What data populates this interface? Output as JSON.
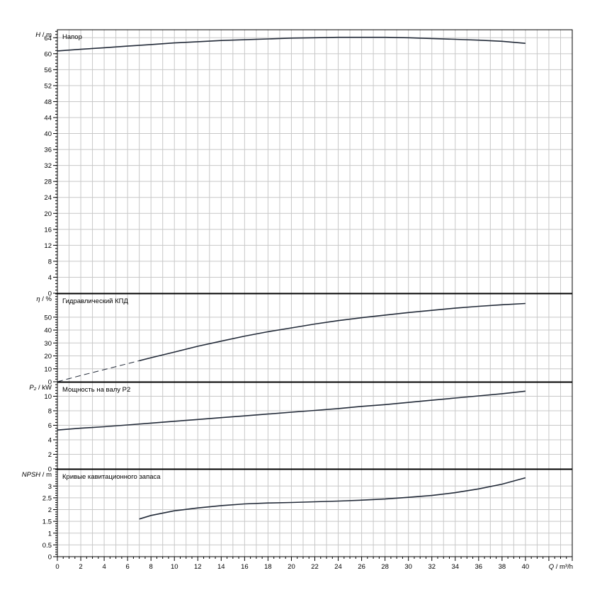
{
  "chart_data": [
    {
      "type": "line",
      "panel": "head",
      "title": "Напор",
      "ylabel_symbol": "H",
      "ylabel_unit": " / m",
      "ylim": [
        0,
        66
      ],
      "yticks": [
        0,
        4,
        8,
        12,
        16,
        20,
        24,
        28,
        32,
        36,
        40,
        44,
        48,
        52,
        56,
        60,
        64
      ],
      "x": [
        0,
        2,
        4,
        6,
        8,
        10,
        12,
        14,
        16,
        18,
        20,
        22,
        24,
        26,
        28,
        30,
        32,
        34,
        36,
        38,
        40
      ],
      "series": [
        {
          "values": [
            60.7,
            61.1,
            61.5,
            61.9,
            62.3,
            62.7,
            63.0,
            63.3,
            63.5,
            63.7,
            63.9,
            64.0,
            64.1,
            64.1,
            64.1,
            64.0,
            63.8,
            63.6,
            63.4,
            63.1,
            62.6
          ]
        }
      ]
    },
    {
      "type": "line",
      "panel": "efficiency",
      "title": "Гидравлический КПД",
      "ylabel_symbol": "η",
      "ylabel_unit": " / %",
      "ylim": [
        0,
        68
      ],
      "yticks": [
        0,
        10,
        20,
        30,
        40,
        50
      ],
      "series": [
        {
          "style": "dashed",
          "x": [
            0,
            2,
            4,
            6,
            7
          ],
          "values": [
            0,
            4.8,
            9.4,
            14,
            16.3
          ]
        },
        {
          "style": "solid",
          "x": [
            7,
            8,
            10,
            12,
            14,
            16,
            18,
            20,
            22,
            24,
            26,
            28,
            30,
            32,
            34,
            36,
            38,
            40
          ],
          "values": [
            16.3,
            18.6,
            23.0,
            27.5,
            31.4,
            35.3,
            38.7,
            41.7,
            44.7,
            47.3,
            49.6,
            51.6,
            53.6,
            55.3,
            57.0,
            58.4,
            59.6,
            60.6
          ]
        }
      ]
    },
    {
      "type": "line",
      "panel": "power",
      "title": "Мощность на валу P2",
      "ylabel_symbol": "P₂",
      "ylabel_unit": " / kW",
      "ylim": [
        0,
        11.9
      ],
      "yticks": [
        0,
        2,
        4,
        6,
        8,
        10
      ],
      "x": [
        0,
        2,
        4,
        6,
        8,
        10,
        12,
        14,
        16,
        18,
        20,
        22,
        24,
        26,
        28,
        30,
        32,
        34,
        36,
        38,
        40
      ],
      "series": [
        {
          "values": [
            5.35,
            5.6,
            5.8,
            6.05,
            6.3,
            6.55,
            6.8,
            7.05,
            7.3,
            7.55,
            7.8,
            8.05,
            8.3,
            8.6,
            8.85,
            9.15,
            9.45,
            9.75,
            10.05,
            10.35,
            10.7
          ]
        }
      ]
    },
    {
      "type": "line",
      "panel": "npsh",
      "title": "Кривые кавитационного запаса",
      "ylabel_symbol": "NPSH",
      "ylabel_unit": " / m",
      "ylim": [
        0,
        3.7
      ],
      "yticks": [
        0,
        0.5,
        1,
        1.5,
        2,
        2.5,
        3
      ],
      "yticklabels": [
        "0",
        "0.5",
        "1",
        "1.5",
        "2",
        "2.5",
        "3"
      ],
      "x": [
        7,
        8,
        10,
        12,
        14,
        16,
        18,
        20,
        22,
        24,
        26,
        28,
        30,
        32,
        34,
        36,
        38,
        40
      ],
      "series": [
        {
          "values": [
            1.6,
            1.75,
            1.95,
            2.07,
            2.17,
            2.24,
            2.28,
            2.3,
            2.33,
            2.36,
            2.4,
            2.45,
            2.52,
            2.6,
            2.72,
            2.88,
            3.08,
            3.35
          ]
        }
      ]
    }
  ],
  "x_axis": {
    "symbol": "Q",
    "unit": " / m³/h",
    "xlim": [
      0,
      44
    ],
    "ticks": [
      0,
      2,
      4,
      6,
      8,
      10,
      12,
      14,
      16,
      18,
      20,
      22,
      24,
      26,
      28,
      30,
      32,
      34,
      36,
      38,
      40
    ]
  },
  "colors": {
    "curve": "#222a38",
    "grid": "#c8c8c8",
    "axis": "#000000"
  }
}
